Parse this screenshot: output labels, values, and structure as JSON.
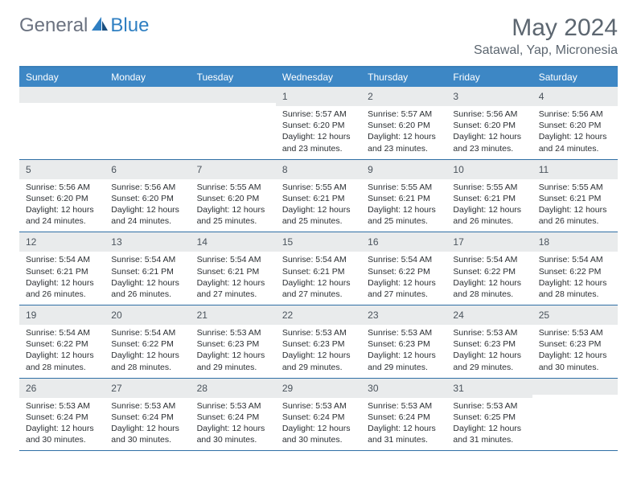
{
  "brand": {
    "word1": "General",
    "word2": "Blue"
  },
  "title": "May 2024",
  "location": "Satawal, Yap, Micronesia",
  "colors": {
    "header_bg": "#3d87c5",
    "header_text": "#ffffff",
    "daynum_bg": "#e9ebec",
    "week_border": "#2f6fa5",
    "top_border": "#3a7fb8",
    "title_color": "#5c6670",
    "brand_gray": "#6b7280",
    "brand_blue": "#2f7fc2"
  },
  "dow": [
    "Sunday",
    "Monday",
    "Tuesday",
    "Wednesday",
    "Thursday",
    "Friday",
    "Saturday"
  ],
  "weeks": [
    [
      {
        "n": "",
        "sr": "",
        "ss": "",
        "dl": ""
      },
      {
        "n": "",
        "sr": "",
        "ss": "",
        "dl": ""
      },
      {
        "n": "",
        "sr": "",
        "ss": "",
        "dl": ""
      },
      {
        "n": "1",
        "sr": "Sunrise: 5:57 AM",
        "ss": "Sunset: 6:20 PM",
        "dl": "Daylight: 12 hours and 23 minutes."
      },
      {
        "n": "2",
        "sr": "Sunrise: 5:57 AM",
        "ss": "Sunset: 6:20 PM",
        "dl": "Daylight: 12 hours and 23 minutes."
      },
      {
        "n": "3",
        "sr": "Sunrise: 5:56 AM",
        "ss": "Sunset: 6:20 PM",
        "dl": "Daylight: 12 hours and 23 minutes."
      },
      {
        "n": "4",
        "sr": "Sunrise: 5:56 AM",
        "ss": "Sunset: 6:20 PM",
        "dl": "Daylight: 12 hours and 24 minutes."
      }
    ],
    [
      {
        "n": "5",
        "sr": "Sunrise: 5:56 AM",
        "ss": "Sunset: 6:20 PM",
        "dl": "Daylight: 12 hours and 24 minutes."
      },
      {
        "n": "6",
        "sr": "Sunrise: 5:56 AM",
        "ss": "Sunset: 6:20 PM",
        "dl": "Daylight: 12 hours and 24 minutes."
      },
      {
        "n": "7",
        "sr": "Sunrise: 5:55 AM",
        "ss": "Sunset: 6:20 PM",
        "dl": "Daylight: 12 hours and 25 minutes."
      },
      {
        "n": "8",
        "sr": "Sunrise: 5:55 AM",
        "ss": "Sunset: 6:21 PM",
        "dl": "Daylight: 12 hours and 25 minutes."
      },
      {
        "n": "9",
        "sr": "Sunrise: 5:55 AM",
        "ss": "Sunset: 6:21 PM",
        "dl": "Daylight: 12 hours and 25 minutes."
      },
      {
        "n": "10",
        "sr": "Sunrise: 5:55 AM",
        "ss": "Sunset: 6:21 PM",
        "dl": "Daylight: 12 hours and 26 minutes."
      },
      {
        "n": "11",
        "sr": "Sunrise: 5:55 AM",
        "ss": "Sunset: 6:21 PM",
        "dl": "Daylight: 12 hours and 26 minutes."
      }
    ],
    [
      {
        "n": "12",
        "sr": "Sunrise: 5:54 AM",
        "ss": "Sunset: 6:21 PM",
        "dl": "Daylight: 12 hours and 26 minutes."
      },
      {
        "n": "13",
        "sr": "Sunrise: 5:54 AM",
        "ss": "Sunset: 6:21 PM",
        "dl": "Daylight: 12 hours and 26 minutes."
      },
      {
        "n": "14",
        "sr": "Sunrise: 5:54 AM",
        "ss": "Sunset: 6:21 PM",
        "dl": "Daylight: 12 hours and 27 minutes."
      },
      {
        "n": "15",
        "sr": "Sunrise: 5:54 AM",
        "ss": "Sunset: 6:21 PM",
        "dl": "Daylight: 12 hours and 27 minutes."
      },
      {
        "n": "16",
        "sr": "Sunrise: 5:54 AM",
        "ss": "Sunset: 6:22 PM",
        "dl": "Daylight: 12 hours and 27 minutes."
      },
      {
        "n": "17",
        "sr": "Sunrise: 5:54 AM",
        "ss": "Sunset: 6:22 PM",
        "dl": "Daylight: 12 hours and 28 minutes."
      },
      {
        "n": "18",
        "sr": "Sunrise: 5:54 AM",
        "ss": "Sunset: 6:22 PM",
        "dl": "Daylight: 12 hours and 28 minutes."
      }
    ],
    [
      {
        "n": "19",
        "sr": "Sunrise: 5:54 AM",
        "ss": "Sunset: 6:22 PM",
        "dl": "Daylight: 12 hours and 28 minutes."
      },
      {
        "n": "20",
        "sr": "Sunrise: 5:54 AM",
        "ss": "Sunset: 6:22 PM",
        "dl": "Daylight: 12 hours and 28 minutes."
      },
      {
        "n": "21",
        "sr": "Sunrise: 5:53 AM",
        "ss": "Sunset: 6:23 PM",
        "dl": "Daylight: 12 hours and 29 minutes."
      },
      {
        "n": "22",
        "sr": "Sunrise: 5:53 AM",
        "ss": "Sunset: 6:23 PM",
        "dl": "Daylight: 12 hours and 29 minutes."
      },
      {
        "n": "23",
        "sr": "Sunrise: 5:53 AM",
        "ss": "Sunset: 6:23 PM",
        "dl": "Daylight: 12 hours and 29 minutes."
      },
      {
        "n": "24",
        "sr": "Sunrise: 5:53 AM",
        "ss": "Sunset: 6:23 PM",
        "dl": "Daylight: 12 hours and 29 minutes."
      },
      {
        "n": "25",
        "sr": "Sunrise: 5:53 AM",
        "ss": "Sunset: 6:23 PM",
        "dl": "Daylight: 12 hours and 30 minutes."
      }
    ],
    [
      {
        "n": "26",
        "sr": "Sunrise: 5:53 AM",
        "ss": "Sunset: 6:24 PM",
        "dl": "Daylight: 12 hours and 30 minutes."
      },
      {
        "n": "27",
        "sr": "Sunrise: 5:53 AM",
        "ss": "Sunset: 6:24 PM",
        "dl": "Daylight: 12 hours and 30 minutes."
      },
      {
        "n": "28",
        "sr": "Sunrise: 5:53 AM",
        "ss": "Sunset: 6:24 PM",
        "dl": "Daylight: 12 hours and 30 minutes."
      },
      {
        "n": "29",
        "sr": "Sunrise: 5:53 AM",
        "ss": "Sunset: 6:24 PM",
        "dl": "Daylight: 12 hours and 30 minutes."
      },
      {
        "n": "30",
        "sr": "Sunrise: 5:53 AM",
        "ss": "Sunset: 6:24 PM",
        "dl": "Daylight: 12 hours and 31 minutes."
      },
      {
        "n": "31",
        "sr": "Sunrise: 5:53 AM",
        "ss": "Sunset: 6:25 PM",
        "dl": "Daylight: 12 hours and 31 minutes."
      },
      {
        "n": "",
        "sr": "",
        "ss": "",
        "dl": ""
      }
    ]
  ]
}
